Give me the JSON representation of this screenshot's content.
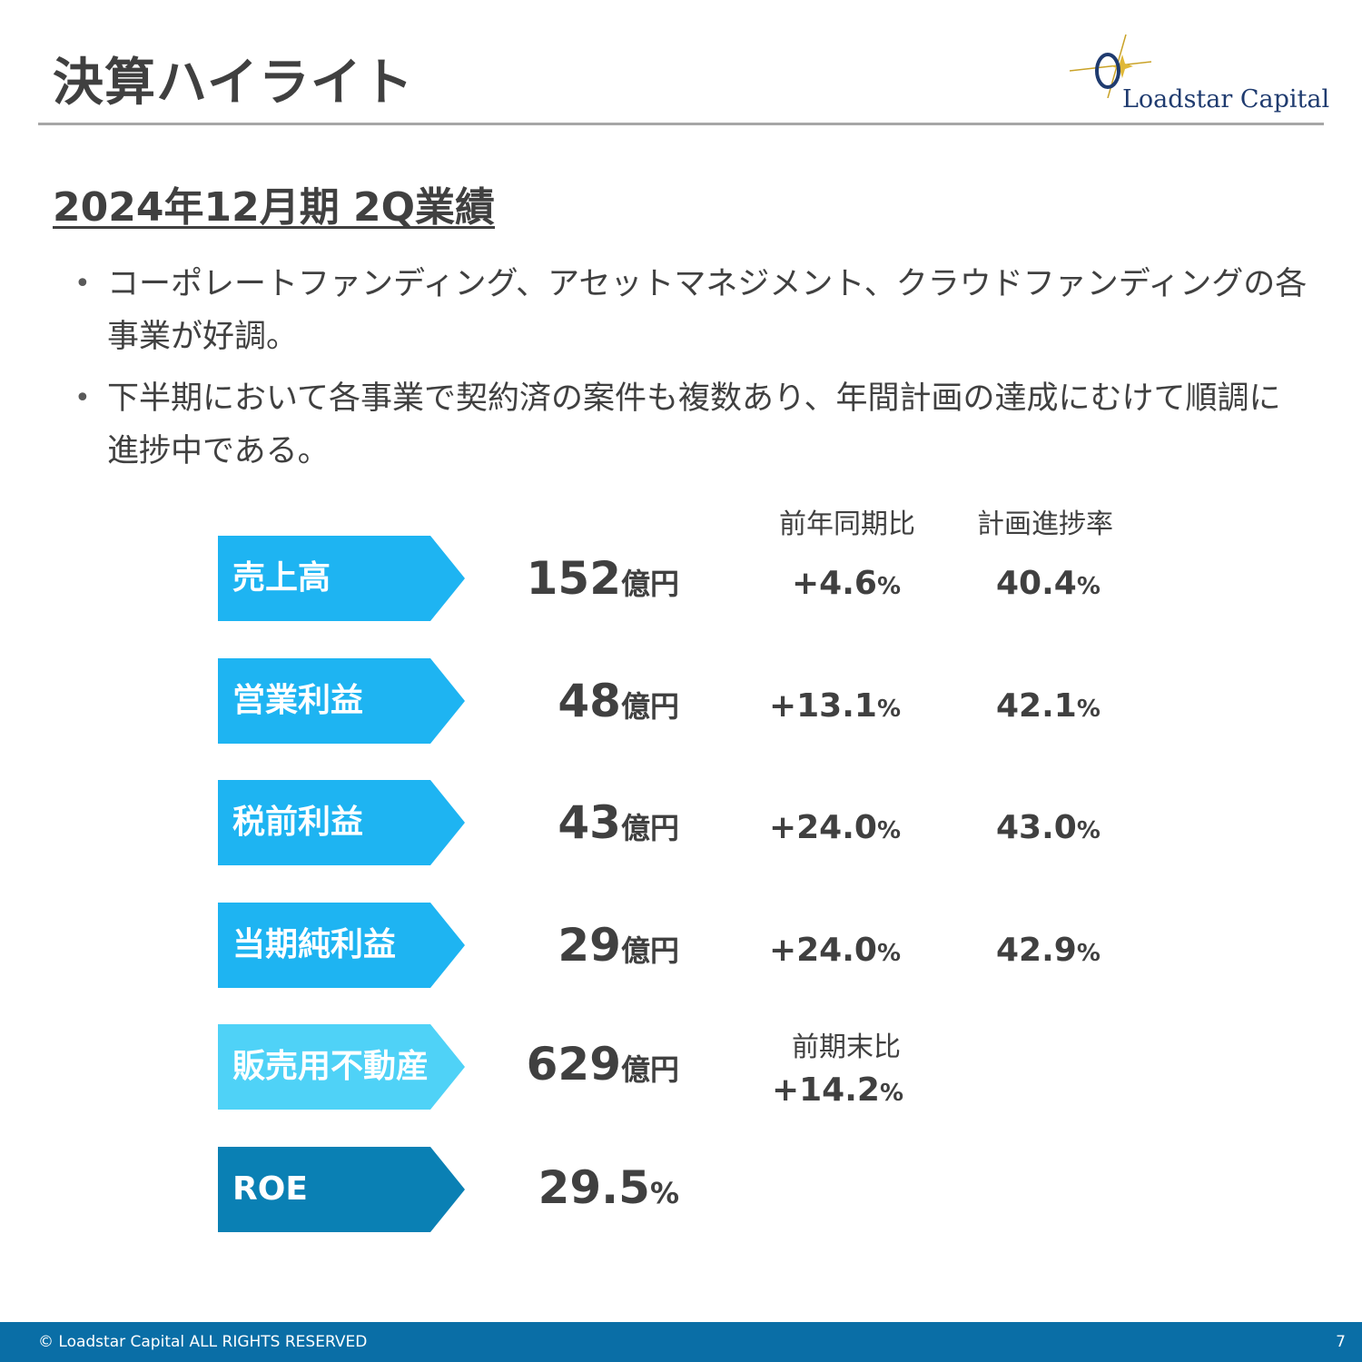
{
  "header": {
    "title": "決算ハイライト",
    "logo_text": "Loadstar Capital"
  },
  "section": {
    "subtitle": "2024年12月期 2Q業績",
    "bullets": [
      "コーポレートファンディング、アセットマネジメント、クラウドファンディングの各事業が好調。",
      "下半期において各事業で契約済の案件も複数あり、年間計画の達成にむけて順調に進捗中である。"
    ]
  },
  "table": {
    "col_yoy": "前年同期比",
    "col_progress": "計画進捗率",
    "rows": [
      {
        "label": "売上高",
        "value": "152",
        "unit": "億円",
        "yoy": "+4.6",
        "yoy_unit": "%",
        "progress": "40.4",
        "progress_unit": "%",
        "color": "#1eb4f2"
      },
      {
        "label": "営業利益",
        "value": "48",
        "unit": "億円",
        "yoy": "+13.1",
        "yoy_unit": "%",
        "progress": "42.1",
        "progress_unit": "%",
        "color": "#1eb4f2"
      },
      {
        "label": "税前利益",
        "value": "43",
        "unit": "億円",
        "yoy": "+24.0",
        "yoy_unit": "%",
        "progress": "43.0",
        "progress_unit": "%",
        "color": "#1eb4f2"
      },
      {
        "label": "当期純利益",
        "value": "29",
        "unit": "億円",
        "yoy": "+24.0",
        "yoy_unit": "%",
        "progress": "42.9",
        "progress_unit": "%",
        "color": "#1eb4f2"
      },
      {
        "label": "販売用不動産",
        "value": "629",
        "unit": "億円",
        "compare_label": "前期末比",
        "compare_value": "+14.2",
        "compare_unit": "%",
        "color": "#4fd2f7"
      },
      {
        "label": "ROE",
        "value": "29.5",
        "unit": "%",
        "color": "#0a80b4"
      }
    ]
  },
  "footer": {
    "copyright": "© Loadstar Capital ALL RIGHTS RESERVED",
    "page_number": "7"
  },
  "colors": {
    "accent": "#1eb4f2",
    "accent_light": "#4fd2f7",
    "accent_dark": "#0a80b4",
    "footer": "#0a6ea6",
    "text": "#404040"
  }
}
